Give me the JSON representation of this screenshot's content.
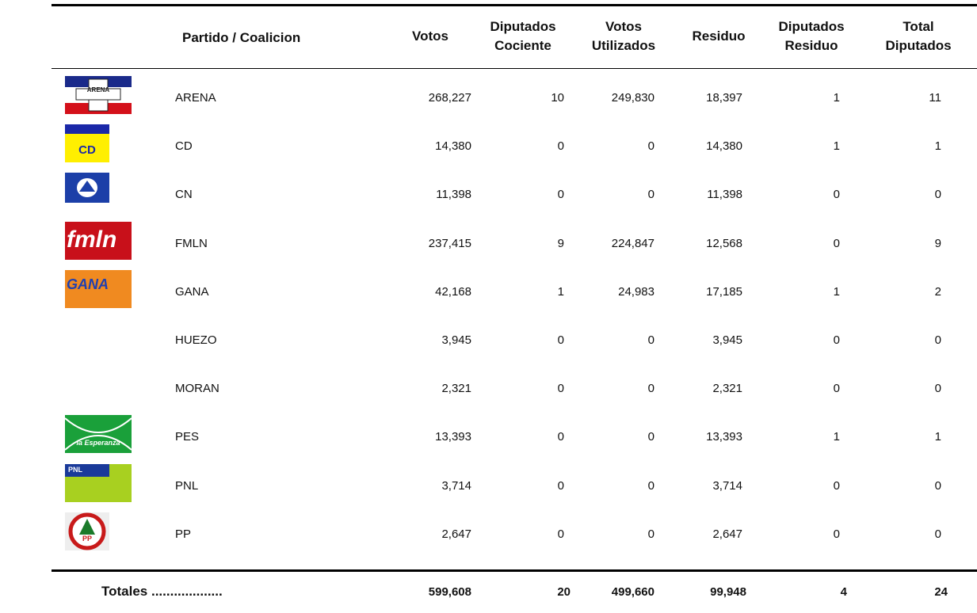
{
  "table": {
    "columns": [
      "Partido / Coalicion",
      "Votos",
      "Diputados Cociente",
      "Votos Utilizados",
      "Residuo",
      "Diputados Residuo",
      "Total Diputados"
    ],
    "rows": [
      {
        "logo": "ARENA",
        "cells": [
          "ARENA",
          "268,227",
          "10",
          "249,830",
          "18,397",
          "1",
          "11"
        ]
      },
      {
        "logo": "CD",
        "cells": [
          "CD",
          "14,380",
          "0",
          "0",
          "14,380",
          "1",
          "1"
        ]
      },
      {
        "cells": [
          "CN",
          "11,398",
          "0",
          "0",
          "11,398",
          "0",
          "0"
        ]
      },
      {
        "logo": "fmln",
        "cells": [
          "FMLN",
          "237,415",
          "9",
          "224,847",
          "12,568",
          "0",
          "9"
        ]
      },
      {
        "logo": "GANA",
        "cells": [
          "GANA",
          "42,168",
          "1",
          "24,983",
          "17,185",
          "1",
          "2"
        ]
      },
      {
        "cells": [
          "HUEZO",
          "3,945",
          "0",
          "0",
          "3,945",
          "0",
          "0"
        ]
      },
      {
        "cells": [
          "MORAN",
          "2,321",
          "0",
          "0",
          "2,321",
          "0",
          "0"
        ]
      },
      {
        "logo": "la Esperanza",
        "cells": [
          "PES",
          "13,393",
          "0",
          "0",
          "13,393",
          "1",
          "1"
        ]
      },
      {
        "logo": "PNL",
        "cells": [
          "PNL",
          "3,714",
          "0",
          "0",
          "3,714",
          "0",
          "0"
        ]
      },
      {
        "logo": "PP",
        "cells": [
          "PP",
          "2,647",
          "0",
          "0",
          "2,647",
          "0",
          "0"
        ]
      }
    ],
    "totals": [
      "Totales ...................",
      "599,608",
      "20",
      "499,660",
      "99,948",
      "4",
      "24"
    ]
  }
}
